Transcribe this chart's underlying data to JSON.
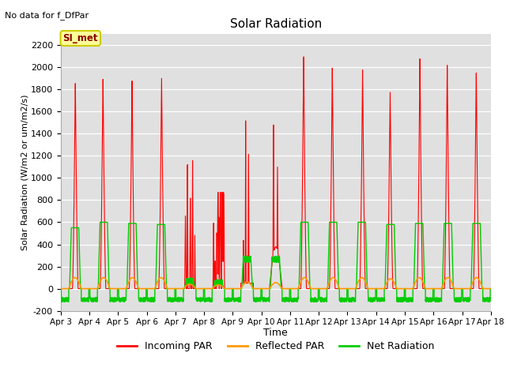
{
  "title": "Solar Radiation",
  "subtitle": "No data for f_DfPar",
  "xlabel": "Time",
  "ylabel": "Solar Radiation (W/m2 or um/m2/s)",
  "ylim": [
    -200,
    2300
  ],
  "yticks": [
    -200,
    0,
    200,
    400,
    600,
    800,
    1000,
    1200,
    1400,
    1600,
    1800,
    2000,
    2200
  ],
  "n_days": 15,
  "xtick_labels": [
    "Apr 3",
    "Apr 4",
    "Apr 5",
    "Apr 6",
    "Apr 7",
    "Apr 8",
    "Apr 9",
    "Apr 10",
    "Apr 11",
    "Apr 12",
    "Apr 13",
    "Apr 14",
    "Apr 15",
    "Apr 16",
    "Apr 17",
    "Apr 18"
  ],
  "legend_labels": [
    "Incoming PAR",
    "Reflected PAR",
    "Net Radiation"
  ],
  "line_colors": [
    "#ff0000",
    "#ff9900",
    "#00cc00"
  ],
  "bg_color": "#e0e0e0",
  "label_text": "SI_met",
  "label_fg": "#8b0000",
  "label_bg": "#ffff99",
  "label_border": "#cccc00",
  "day_peaks": [
    1900,
    1930,
    1880,
    1910,
    1230,
    870,
    1520,
    1260,
    2150,
    2000,
    2000,
    1800,
    2080,
    2050,
    2000
  ],
  "net_peaks": [
    550,
    600,
    590,
    580,
    200,
    180,
    400,
    400,
    600,
    600,
    600,
    580,
    590,
    590,
    590
  ],
  "refl_peaks": [
    100,
    100,
    100,
    100,
    40,
    35,
    60,
    55,
    100,
    100,
    100,
    90,
    100,
    100,
    100
  ]
}
